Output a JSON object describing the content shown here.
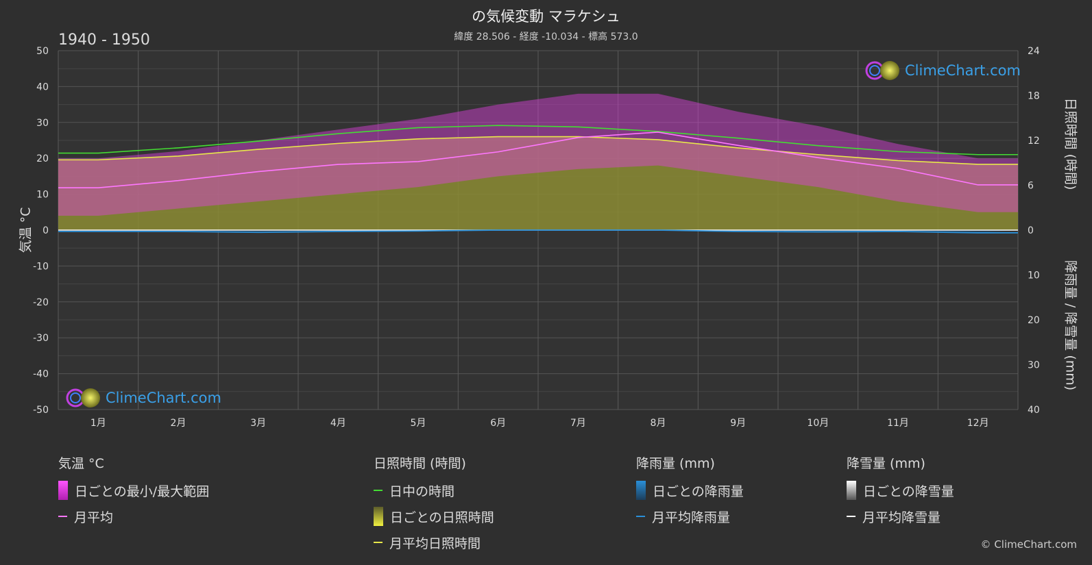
{
  "header": {
    "title": "の気候変動 マラケシュ",
    "subtitle": "緯度 28.506 - 経度 -10.034 - 標高 573.0",
    "period": "1940 - 1950"
  },
  "logo": {
    "text": "ClimeChart.com"
  },
  "copyright": "© ClimeChart.com",
  "colors": {
    "background": "#2f2f2f",
    "temp_range": "#e040e0",
    "temp_avg": "#ff77ff",
    "daylight": "#44dd33",
    "sunshine_fill": "#8c8c34",
    "sunshine_avg": "#e8e84a",
    "rain": "#2a8fd8",
    "snow": "#ffffff"
  },
  "chart_data": {
    "type": "line",
    "categories": [
      "1月",
      "2月",
      "3月",
      "4月",
      "5月",
      "6月",
      "7月",
      "8月",
      "9月",
      "10月",
      "11月",
      "12月"
    ],
    "axes": {
      "left": {
        "label": "気温 °C",
        "range": [
          -50,
          50
        ],
        "ticks": [
          50,
          40,
          30,
          20,
          10,
          0,
          -10,
          -20,
          -30,
          -40,
          -50
        ]
      },
      "right_top": {
        "label": "日照時間 (時間)",
        "range": [
          0,
          24
        ],
        "ticks": [
          24,
          18,
          12,
          6,
          0
        ]
      },
      "right_bottom": {
        "label": "降雨量 / 降雪量 (mm)",
        "range": [
          0,
          40
        ],
        "ticks": [
          10,
          20,
          30,
          40
        ]
      }
    },
    "grid": true,
    "series": [
      {
        "name": "月平均",
        "unit": "°C",
        "values": [
          11.8,
          13.8,
          16.3,
          18.3,
          19.1,
          21.8,
          25.8,
          27.3,
          23.6,
          20.2,
          17.2,
          12.6
        ]
      },
      {
        "name": "日中の時間",
        "unit": "時間",
        "values": [
          10.3,
          11.0,
          11.9,
          12.9,
          13.7,
          14.0,
          13.8,
          13.2,
          12.3,
          11.3,
          10.5,
          10.1
        ]
      },
      {
        "name": "月平均日照時間",
        "unit": "時間",
        "values": [
          9.4,
          9.9,
          10.8,
          11.6,
          12.2,
          12.5,
          12.5,
          12.1,
          11.0,
          10.1,
          9.3,
          8.8
        ]
      },
      {
        "name": "月平均降雨量",
        "unit": "mm",
        "values": [
          0.3,
          0.3,
          0.5,
          0.3,
          0.2,
          0.0,
          0.0,
          0.0,
          0.3,
          0.4,
          0.3,
          0.6
        ]
      },
      {
        "name": "月平均降雪量",
        "unit": "mm",
        "values": [
          0,
          0,
          0,
          0,
          0,
          0,
          0,
          0,
          0,
          0,
          0,
          0
        ]
      }
    ],
    "temp_range": {
      "name": "日ごとの最小/最大範囲",
      "min": [
        4,
        6,
        8,
        10,
        12,
        15,
        17,
        18,
        15,
        12,
        8,
        5
      ],
      "max": [
        20,
        22,
        25,
        28,
        31,
        35,
        38,
        38,
        33,
        29,
        24,
        20
      ]
    },
    "sunshine_daily": {
      "name": "日ごとの日照時間"
    },
    "rain_daily": {
      "name": "日ごとの降雨量"
    },
    "snow_daily": {
      "name": "日ごとの降雪量"
    }
  },
  "legend": {
    "temperature": {
      "title": "気温 °C",
      "items": [
        "日ごとの最小/最大範囲",
        "月平均"
      ]
    },
    "sunshine": {
      "title": "日照時間 (時間)",
      "items": [
        "日中の時間",
        "日ごとの日照時間",
        "月平均日照時間"
      ]
    },
    "rain": {
      "title": "降雨量 (mm)",
      "items": [
        "日ごとの降雨量",
        "月平均降雨量"
      ]
    },
    "snow": {
      "title": "降雪量 (mm)",
      "items": [
        "日ごとの降雪量",
        "月平均降雪量"
      ]
    }
  }
}
